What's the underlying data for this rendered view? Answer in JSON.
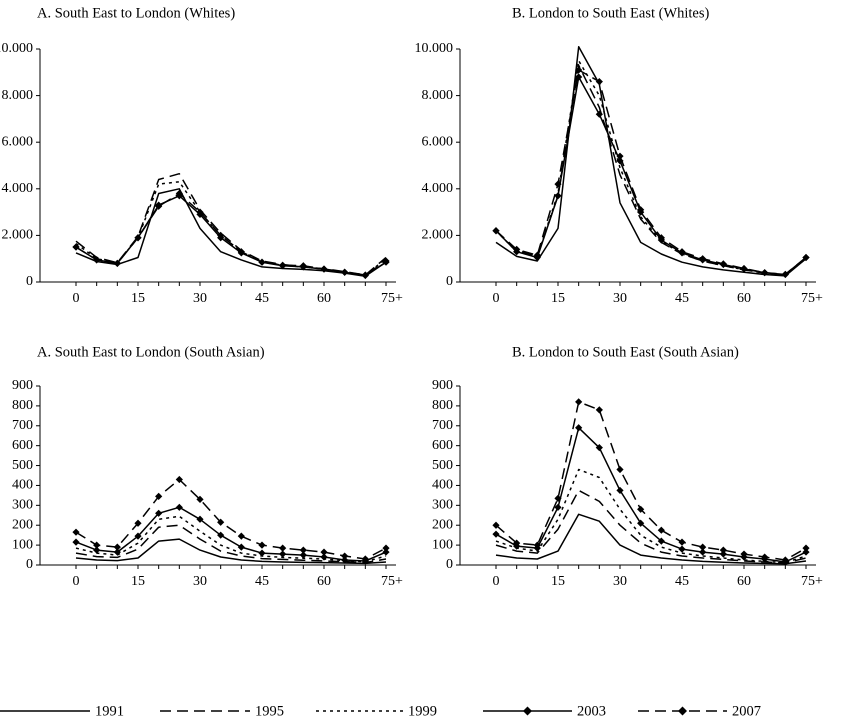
{
  "chart_data": [
    {
      "type": "line",
      "title": "A. South East to London (Whites)",
      "x": [
        0,
        5,
        10,
        15,
        20,
        25,
        30,
        35,
        40,
        45,
        50,
        55,
        60,
        65,
        70,
        75
      ],
      "x_ticks": [
        0,
        15,
        30,
        45,
        60,
        75
      ],
      "x_tick_labels": [
        "0",
        "15",
        "30",
        "45",
        "60",
        "75+"
      ],
      "ylim": [
        0,
        10000
      ],
      "y_ticks": [
        0,
        2000,
        4000,
        6000,
        8000,
        10000
      ],
      "y_tick_labels": [
        "0",
        "2.000",
        "4.000",
        "6.000",
        "8.000",
        "10.000"
      ],
      "series": [
        {
          "name": "1991",
          "values": [
            1250,
            880,
            750,
            1050,
            3800,
            4000,
            2300,
            1300,
            950,
            650,
            580,
            540,
            480,
            380,
            250,
            850
          ]
        },
        {
          "name": "1995",
          "values": [
            1750,
            1050,
            830,
            1950,
            4400,
            4650,
            3100,
            2100,
            1350,
            900,
            750,
            650,
            570,
            440,
            300,
            1050
          ]
        },
        {
          "name": "1999",
          "values": [
            1650,
            1000,
            820,
            1900,
            4200,
            4300,
            3000,
            2000,
            1300,
            880,
            720,
            640,
            560,
            430,
            300,
            1000
          ]
        },
        {
          "name": "2003",
          "values": [
            1500,
            950,
            800,
            1900,
            3300,
            3700,
            2900,
            1900,
            1250,
            850,
            700,
            650,
            550,
            420,
            280,
            850
          ]
        },
        {
          "name": "2007",
          "values": [
            1500,
            950,
            800,
            1900,
            3250,
            3800,
            3000,
            2000,
            1300,
            850,
            720,
            700,
            560,
            420,
            300,
            900
          ]
        }
      ]
    },
    {
      "type": "line",
      "title": "B. London to South East (Whites)",
      "x": [
        0,
        5,
        10,
        15,
        20,
        25,
        30,
        35,
        40,
        45,
        50,
        55,
        60,
        65,
        70,
        75
      ],
      "x_ticks": [
        0,
        15,
        30,
        45,
        60,
        75
      ],
      "x_tick_labels": [
        "0",
        "15",
        "30",
        "45",
        "60",
        "75+"
      ],
      "ylim": [
        0,
        10000
      ],
      "y_ticks": [
        0,
        2000,
        4000,
        6000,
        8000,
        10000
      ],
      "y_tick_labels": [
        "0",
        "2.000",
        "4.000",
        "6.000",
        "8.000",
        "10.000"
      ],
      "series": [
        {
          "name": "1991",
          "values": [
            1700,
            1100,
            900,
            2300,
            10100,
            8500,
            3400,
            1700,
            1200,
            850,
            650,
            520,
            420,
            320,
            260,
            1000
          ]
        },
        {
          "name": "1995",
          "values": [
            2200,
            1350,
            1100,
            3700,
            9300,
            7500,
            4600,
            2700,
            1700,
            1200,
            900,
            700,
            520,
            380,
            300,
            1000
          ]
        },
        {
          "name": "1999",
          "values": [
            2200,
            1300,
            1100,
            3800,
            9500,
            8000,
            4900,
            2800,
            1750,
            1200,
            900,
            700,
            530,
            380,
            300,
            1000
          ]
        },
        {
          "name": "2003",
          "values": [
            2200,
            1300,
            1050,
            3700,
            8800,
            7200,
            5200,
            3000,
            1800,
            1250,
            950,
            750,
            560,
            400,
            320,
            1050
          ]
        },
        {
          "name": "2007",
          "values": [
            2200,
            1400,
            1150,
            4200,
            9100,
            8600,
            5400,
            3100,
            1900,
            1300,
            1000,
            780,
            580,
            400,
            330,
            1050
          ]
        }
      ]
    },
    {
      "type": "line",
      "title": "A. South East to London (South Asian)",
      "x": [
        0,
        5,
        10,
        15,
        20,
        25,
        30,
        35,
        40,
        45,
        50,
        55,
        60,
        65,
        70,
        75
      ],
      "x_ticks": [
        0,
        15,
        30,
        45,
        60,
        75
      ],
      "x_tick_labels": [
        "0",
        "15",
        "30",
        "45",
        "60",
        "75+"
      ],
      "ylim": [
        0,
        900
      ],
      "y_ticks": [
        0,
        100,
        200,
        300,
        400,
        500,
        600,
        700,
        800,
        900
      ],
      "y_tick_labels": [
        "0",
        "100",
        "200",
        "300",
        "400",
        "500",
        "600",
        "700",
        "800",
        "900"
      ],
      "series": [
        {
          "name": "1991",
          "values": [
            35,
            25,
            22,
            35,
            120,
            130,
            75,
            40,
            25,
            18,
            15,
            13,
            12,
            10,
            8,
            15
          ]
        },
        {
          "name": "1995",
          "values": [
            60,
            42,
            38,
            80,
            190,
            200,
            130,
            70,
            45,
            32,
            28,
            24,
            20,
            17,
            12,
            30
          ]
        },
        {
          "name": "1999",
          "values": [
            85,
            60,
            50,
            110,
            230,
            245,
            170,
            100,
            60,
            45,
            38,
            34,
            30,
            22,
            16,
            45
          ]
        },
        {
          "name": "2003",
          "values": [
            115,
            75,
            65,
            145,
            260,
            290,
            230,
            150,
            90,
            60,
            55,
            50,
            40,
            25,
            20,
            65
          ]
        },
        {
          "name": "2007",
          "values": [
            165,
            100,
            90,
            210,
            345,
            430,
            330,
            215,
            145,
            100,
            85,
            75,
            65,
            45,
            30,
            85
          ]
        }
      ]
    },
    {
      "type": "line",
      "title": "B. London to South East (South Asian)",
      "x": [
        0,
        5,
        10,
        15,
        20,
        25,
        30,
        35,
        40,
        45,
        50,
        55,
        60,
        65,
        70,
        75
      ],
      "x_ticks": [
        0,
        15,
        30,
        45,
        60,
        75
      ],
      "x_tick_labels": [
        "0",
        "15",
        "30",
        "45",
        "60",
        "75+"
      ],
      "ylim": [
        0,
        900
      ],
      "y_ticks": [
        0,
        100,
        200,
        300,
        400,
        500,
        600,
        700,
        800,
        900
      ],
      "y_tick_labels": [
        "0",
        "100",
        "200",
        "300",
        "400",
        "500",
        "600",
        "700",
        "800",
        "900"
      ],
      "series": [
        {
          "name": "1991",
          "values": [
            50,
            35,
            30,
            70,
            255,
            220,
            100,
            50,
            35,
            25,
            18,
            14,
            10,
            8,
            6,
            20
          ]
        },
        {
          "name": "1995",
          "values": [
            100,
            70,
            60,
            180,
            375,
            320,
            200,
            110,
            65,
            45,
            35,
            28,
            20,
            15,
            10,
            35
          ]
        },
        {
          "name": "1999",
          "values": [
            120,
            85,
            70,
            230,
            480,
            440,
            280,
            150,
            90,
            60,
            45,
            35,
            25,
            18,
            12,
            45
          ]
        },
        {
          "name": "2003",
          "values": [
            155,
            95,
            85,
            290,
            690,
            590,
            375,
            210,
            120,
            80,
            65,
            55,
            40,
            30,
            15,
            65
          ]
        },
        {
          "name": "2007",
          "values": [
            200,
            110,
            100,
            335,
            820,
            780,
            480,
            280,
            175,
            115,
            90,
            75,
            55,
            40,
            25,
            85
          ]
        }
      ]
    }
  ],
  "legend": [
    {
      "label": "1991",
      "dash": "solid",
      "marker": "none"
    },
    {
      "label": "1995",
      "dash": "long-dash",
      "marker": "none"
    },
    {
      "label": "1999",
      "dash": "dotted",
      "marker": "none"
    },
    {
      "label": "2003",
      "dash": "solid",
      "marker": "diamond"
    },
    {
      "label": "2007",
      "dash": "long-dash",
      "marker": "diamond"
    }
  ]
}
